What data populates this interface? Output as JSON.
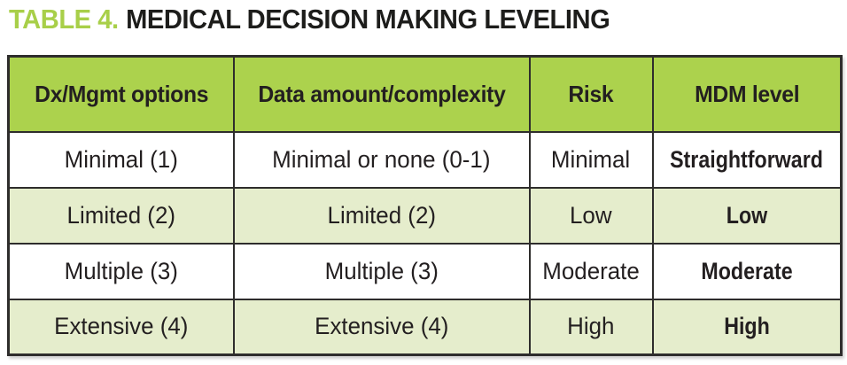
{
  "title": {
    "label": "TABLE 4.",
    "text": "MEDICAL DECISION MAKING LEVELING"
  },
  "colors": {
    "title_green": "#a8cf49",
    "header_green": "#acd24d",
    "row_alt_green": "#e5edcc",
    "row_white": "#ffffff",
    "text_dark": "#231f20",
    "border_dark": "#2e2d2c"
  },
  "table": {
    "headers": [
      "Dx/Mgmt options",
      "Data amount/complexity",
      "Risk",
      "MDM level"
    ],
    "rows": [
      [
        "Minimal (1)",
        "Minimal or none (0-1)",
        "Minimal",
        "Straightforward"
      ],
      [
        "Limited (2)",
        "Limited (2)",
        "Low",
        "Low"
      ],
      [
        "Multiple (3)",
        "Multiple (3)",
        "Moderate",
        "Moderate"
      ],
      [
        "Extensive (4)",
        "Extensive (4)",
        "High",
        "High"
      ]
    ]
  }
}
